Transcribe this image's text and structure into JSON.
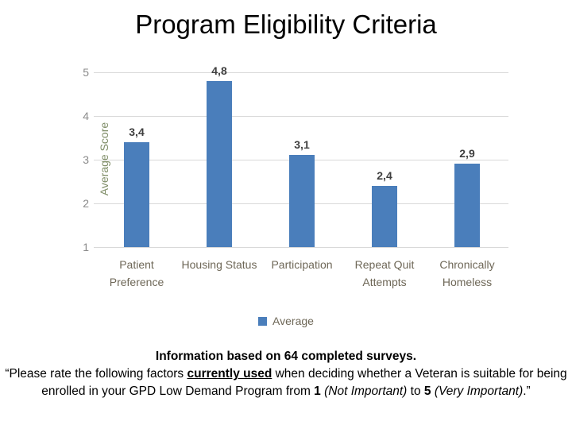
{
  "slide": {
    "title": "Program Eligibility Criteria"
  },
  "chart_data": {
    "type": "bar",
    "title": "",
    "categories": [
      "Patient Preference",
      "Housing Status",
      "Participation",
      "Repeat Quit Attempts",
      "Chronically Homeless"
    ],
    "series": [
      {
        "name": "Average",
        "values": [
          3.4,
          4.8,
          3.1,
          2.4,
          2.9
        ]
      }
    ],
    "value_labels": [
      "3,4",
      "4,8",
      "3,1",
      "2,4",
      "2,9"
    ],
    "xlabel": "",
    "ylabel": "Average Score",
    "yticks": [
      "1",
      "2",
      "3",
      "4",
      "5"
    ],
    "ylim": [
      1,
      5
    ],
    "grid": "horizontal",
    "legend_position": "bottom",
    "legend_label": "Average",
    "bar_color": "#4a7ebb",
    "gridline_color": "#d9d9d9"
  },
  "footer": {
    "line1": "Information based on 64 completed surveys.",
    "q_open": "“Please rate the following factors ",
    "q_emph": "currently used",
    "q_mid": " when deciding whether a Veteran is suitable for being enrolled in your GPD Low Demand Program from ",
    "q_num1": "1",
    "q_sp1": " ",
    "q_it1": "(Not Important)",
    "q_to": " to ",
    "q_num2": "5",
    "q_sp2": " ",
    "q_it2": "(Very Important)",
    "q_close": ".”"
  }
}
